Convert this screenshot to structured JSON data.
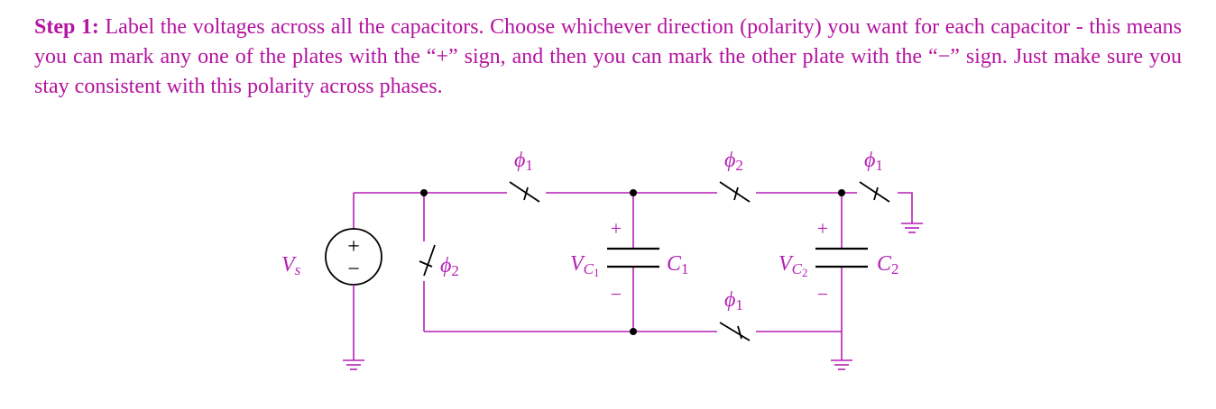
{
  "instructions": {
    "step_label": "Step 1:",
    "text": " Label the voltages across all the capacitors. Choose whichever direction (polarity) you want for each capacitor - this means you can mark any one of the plates with the “+” sign, and then you can mark the other plate with the “−” sign. Just make sure you stay consistent with this polarity across phases."
  },
  "circuit": {
    "source": {
      "label": "V",
      "sub": "s",
      "plus": "+",
      "minus": "−"
    },
    "phase_symbol": "ϕ",
    "switches": [
      {
        "id": "top-left",
        "phase": "1"
      },
      {
        "id": "top-middle",
        "phase": "2"
      },
      {
        "id": "top-right",
        "phase": "1"
      },
      {
        "id": "vertical",
        "phase": "2"
      },
      {
        "id": "bottom",
        "phase": "1"
      }
    ],
    "capacitors": [
      {
        "name": "C",
        "name_sub": "1",
        "voltage": "V",
        "voltage_sub": "C",
        "voltage_subsub": "1",
        "plus": "+",
        "minus": "−"
      },
      {
        "name": "C",
        "name_sub": "2",
        "voltage": "V",
        "voltage_sub": "C",
        "voltage_subsub": "2",
        "plus": "+",
        "minus": "−"
      }
    ]
  },
  "colors": {
    "ink": "#b51fb5",
    "text": "#b4139f"
  }
}
